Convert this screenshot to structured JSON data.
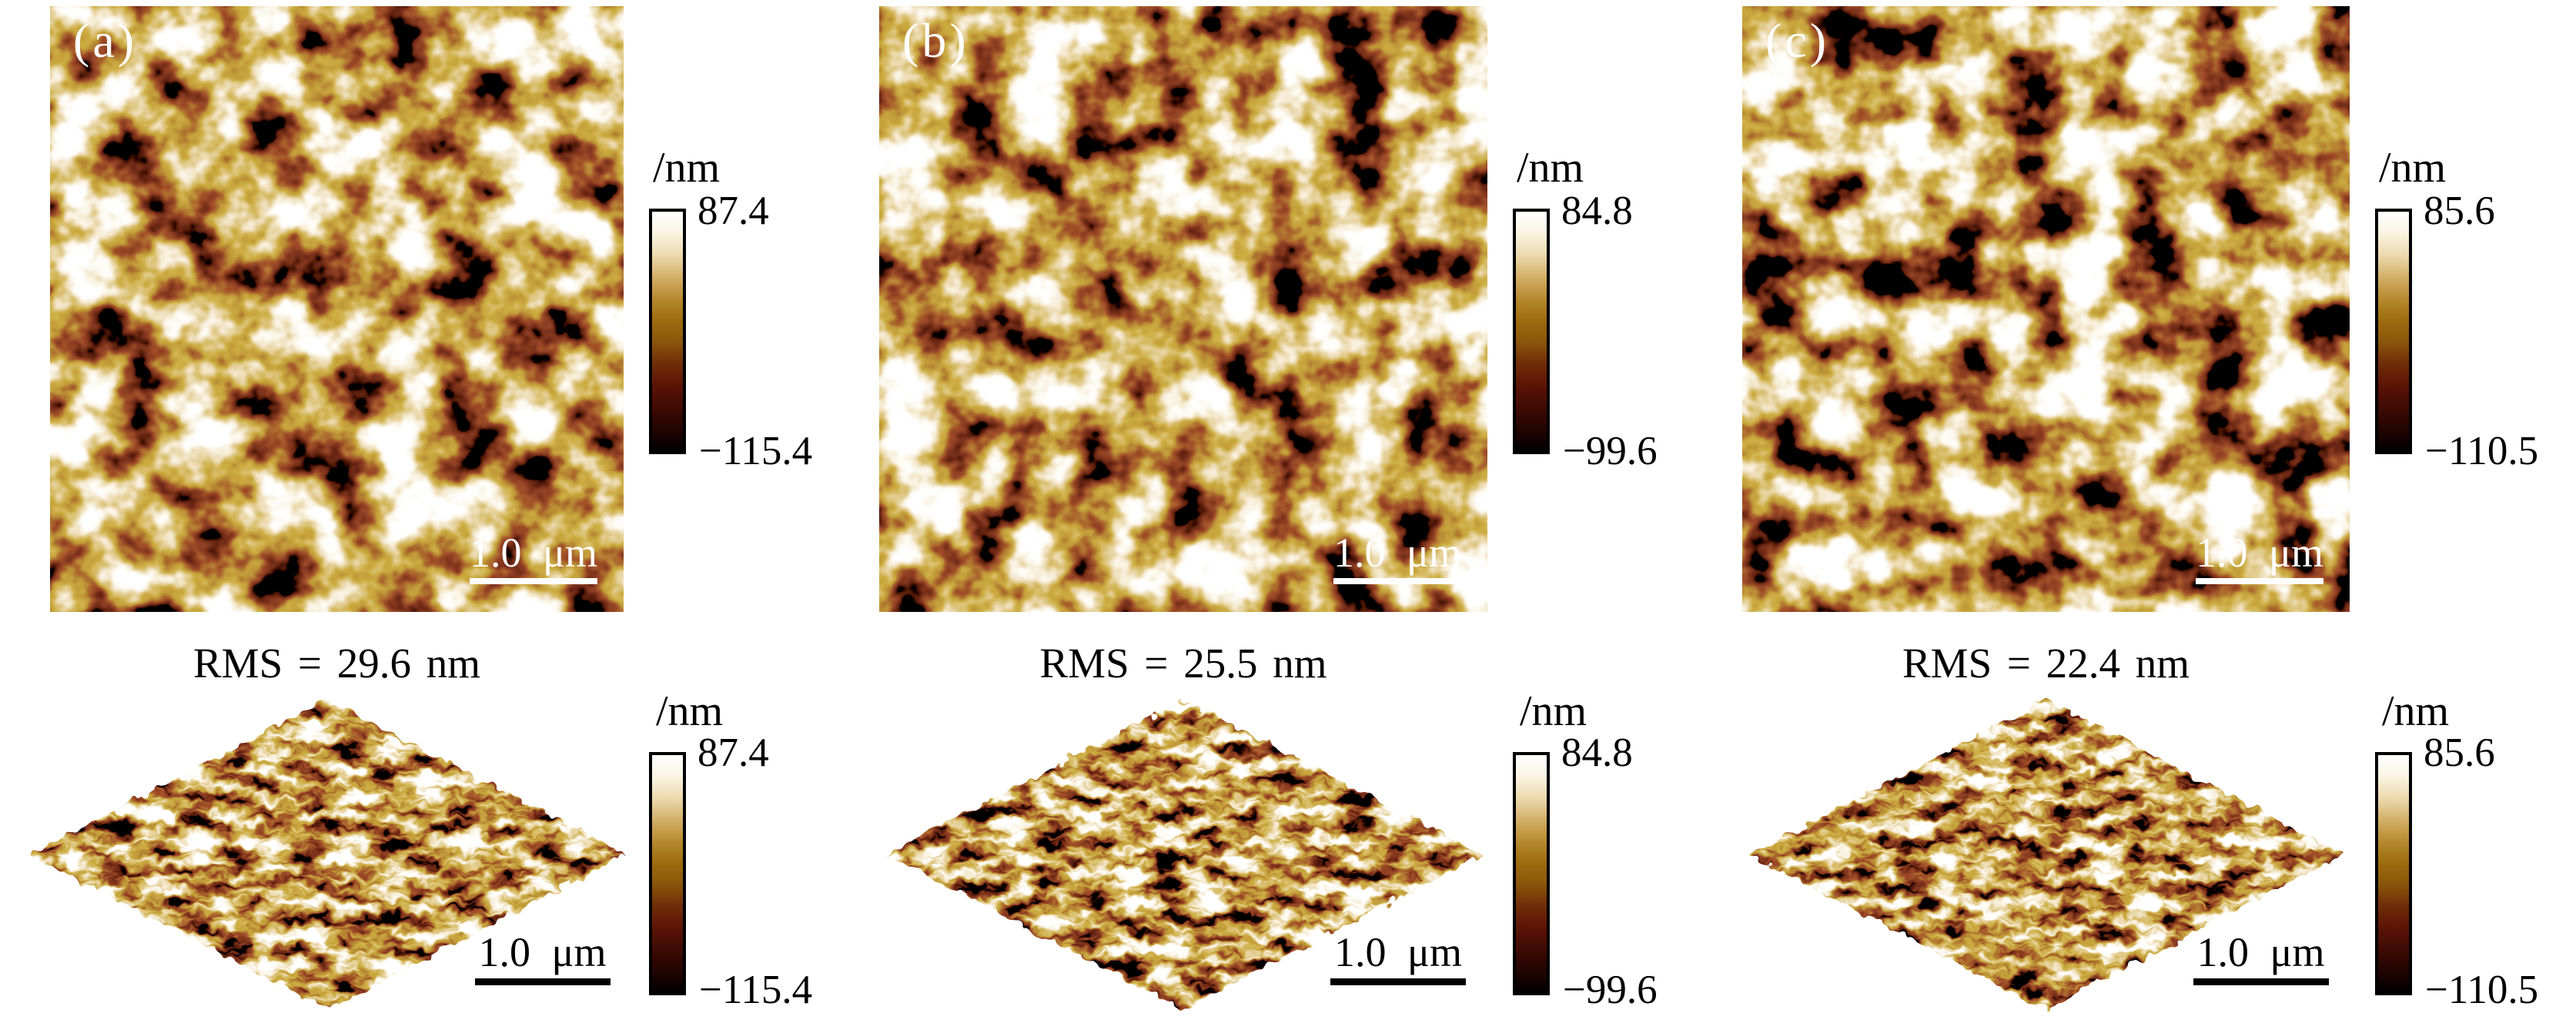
{
  "figure": {
    "type": "afm-topography-figure",
    "background": "#ffffff",
    "colormap": {
      "name": "afm-gold",
      "stops": [
        "#000000",
        "#230502",
        "#3f0b04",
        "#5c1406",
        "#6f2d08",
        "#8a550b",
        "#9c6c0e",
        "#b68a2e",
        "#d3b068",
        "#ecd9ae",
        "#fbf4e2",
        "#ffffff"
      ]
    },
    "panels": [
      {
        "label": "(a)",
        "rms_label": "RMS = 29.6 nm",
        "scalebar_label": "1.0 μm",
        "colorbar": {
          "unit": "/nm",
          "max": "87.4",
          "min": "−115.4"
        },
        "texture": {
          "seed_2d": 7,
          "seed_3d": 31
        }
      },
      {
        "label": "(b)",
        "rms_label": "RMS = 25.5 nm",
        "scalebar_label": "1.0 μm",
        "colorbar": {
          "unit": "/nm",
          "max": "84.8",
          "min": "−99.6"
        },
        "texture": {
          "seed_2d": 13,
          "seed_3d": 47
        }
      },
      {
        "label": "(c)",
        "rms_label": "RMS = 22.4 nm",
        "scalebar_label": "1.0 μm",
        "colorbar": {
          "unit": "/nm",
          "max": "85.6",
          "min": "−110.5"
        },
        "texture": {
          "seed_2d": 23,
          "seed_3d": 61
        }
      }
    ]
  }
}
